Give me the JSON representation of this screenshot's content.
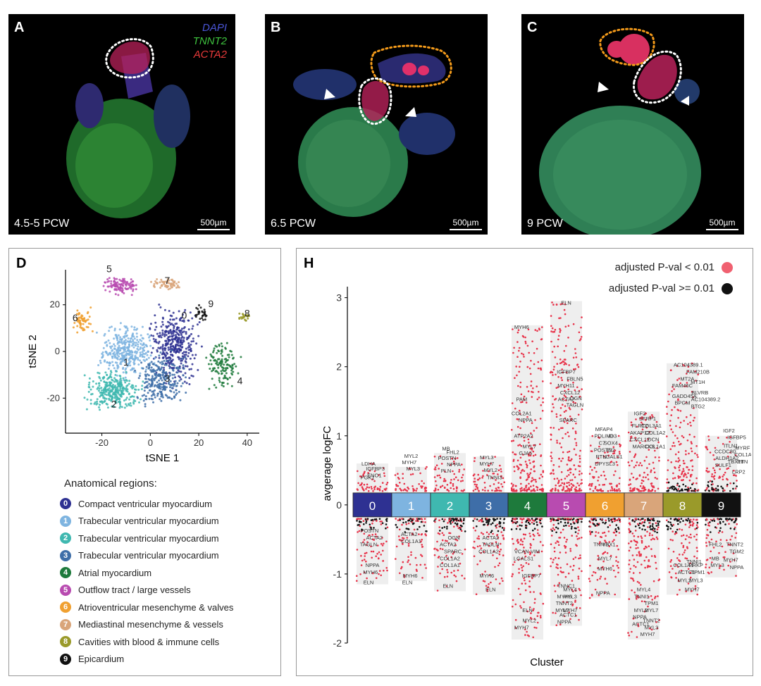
{
  "panel_a": {
    "label": "A",
    "stage": "4.5-5 PCW",
    "scale": "500µm",
    "stains": [
      {
        "name": "DAPI",
        "color": "#4a55d6"
      },
      {
        "name": "TNNT2",
        "color": "#3ec23e"
      },
      {
        "name": "ACTA2",
        "color": "#e83a3a"
      }
    ]
  },
  "panel_b": {
    "label": "B",
    "stage": "6.5 PCW",
    "scale": "500µm"
  },
  "panel_c": {
    "label": "C",
    "stage": "9 PCW",
    "scale": "500µm"
  },
  "panel_d": {
    "label": "D",
    "legend_title": "Anatomical regions:"
  },
  "panel_h": {
    "label": "H",
    "legend_sig": "adjusted P-val < 0.01",
    "legend_nonsig": "adjusted  P-val >= 0.01"
  },
  "regions": [
    {
      "id": "0",
      "name": "Compact ventricular myocardium",
      "color": "#2e3192"
    },
    {
      "id": "1",
      "name": "Trabecular ventricular myocardium",
      "color": "#7eb4e0"
    },
    {
      "id": "2",
      "name": "Trabecular ventricular myocardium",
      "color": "#3fb8b0"
    },
    {
      "id": "3",
      "name": "Trabecular ventricular myocardium",
      "color": "#3e6ea8"
    },
    {
      "id": "4",
      "name": "Atrial myocardium",
      "color": "#1e7a3c"
    },
    {
      "id": "5",
      "name": "Outflow tract / large vessels",
      "color": "#b84bb0"
    },
    {
      "id": "6",
      "name": "Atrioventricular mesenchyme & valves",
      "color": "#f0a030"
    },
    {
      "id": "7",
      "name": "Mediastinal mesenchyme & vessels",
      "color": "#d9a57a"
    },
    {
      "id": "8",
      "name": "Cavities with blood & immune cells",
      "color": "#9a9a2a"
    },
    {
      "id": "9",
      "name": "Epicardium",
      "color": "#111111"
    }
  ],
  "chart_data": [
    {
      "type": "scatter",
      "title": "",
      "xlabel": "tSNE 1",
      "ylabel": "tSNE 2",
      "xlim": [
        -35,
        45
      ],
      "ylim": [
        -35,
        35
      ],
      "xticks": [
        -20,
        0,
        20,
        40
      ],
      "yticks": [
        -20,
        0,
        20
      ],
      "clusters": [
        {
          "id": "0",
          "center": [
            10,
            3
          ],
          "spread": [
            7,
            11
          ],
          "label_pos": [
            14,
            14
          ]
        },
        {
          "id": "1",
          "center": [
            -10,
            0
          ],
          "spread": [
            8,
            8
          ],
          "label_pos": [
            -10,
            -6
          ]
        },
        {
          "id": "2",
          "center": [
            -15,
            -17
          ],
          "spread": [
            8,
            6
          ],
          "label_pos": [
            -15,
            -24
          ]
        },
        {
          "id": "3",
          "center": [
            4,
            -12
          ],
          "spread": [
            7,
            8
          ],
          "label_pos": [
            7,
            -13
          ]
        },
        {
          "id": "4",
          "center": [
            30,
            -6
          ],
          "spread": [
            5,
            7
          ],
          "label_pos": [
            37,
            -14
          ]
        },
        {
          "id": "5",
          "center": [
            -12,
            28
          ],
          "spread": [
            5,
            3
          ],
          "label_pos": [
            -17,
            34
          ]
        },
        {
          "id": "6",
          "center": [
            -28,
            13
          ],
          "spread": [
            3,
            4
          ],
          "label_pos": [
            -31,
            13
          ]
        },
        {
          "id": "7",
          "center": [
            7,
            29
          ],
          "spread": [
            5,
            2
          ],
          "label_pos": [
            7,
            29
          ]
        },
        {
          "id": "8",
          "center": [
            39,
            15
          ],
          "spread": [
            2,
            1.5
          ],
          "label_pos": [
            40,
            15
          ]
        },
        {
          "id": "9",
          "center": [
            21,
            16
          ],
          "spread": [
            2,
            2.5
          ],
          "label_pos": [
            25,
            19
          ]
        }
      ]
    },
    {
      "type": "scatter",
      "title": "",
      "xlabel": "Cluster",
      "ylabel": "avgerage logFC",
      "ylim": [
        -2,
        3.2
      ],
      "yticks": [
        -2,
        -1,
        0,
        1,
        2,
        3
      ],
      "categories": [
        "0",
        "1",
        "2",
        "3",
        "4",
        "5",
        "6",
        "7",
        "8",
        "9"
      ],
      "up_range": [
        0.6,
        0.55,
        0.75,
        0.7,
        2.6,
        2.95,
        1.0,
        1.35,
        2.05,
        1.0
      ],
      "down_range": [
        -1.15,
        -1.1,
        -1.25,
        -1.3,
        -1.95,
        -1.75,
        -1.35,
        -1.95,
        -1.3,
        -1.05
      ],
      "up_labels": [
        [
          {
            "t": "LDHA",
            "x": -0.2,
            "y": 0.57
          },
          {
            "t": "IGFBP3",
            "x": 0.15,
            "y": 0.5
          },
          {
            "t": "PGK1",
            "x": -0.25,
            "y": 0.37
          },
          {
            "t": "ENO1",
            "x": 0.1,
            "y": 0.4
          }
        ],
        [
          {
            "t": "MYL2",
            "x": 0,
            "y": 0.68
          },
          {
            "t": "MYH7",
            "x": -0.1,
            "y": 0.59
          },
          {
            "t": "MYL3",
            "x": 0.1,
            "y": 0.5
          }
        ],
        [
          {
            "t": "MB",
            "x": -0.2,
            "y": 0.79
          },
          {
            "t": "FHL2",
            "x": 0.15,
            "y": 0.74
          },
          {
            "t": "POSTN",
            "x": -0.15,
            "y": 0.65
          },
          {
            "t": "NPPA",
            "x": 0.2,
            "y": 0.56
          },
          {
            "t": "PLN",
            "x": -0.2,
            "y": 0.47
          }
        ],
        [
          {
            "t": "MYL3",
            "x": -0.1,
            "y": 0.66
          },
          {
            "t": "MYH7",
            "x": -0.1,
            "y": 0.57
          },
          {
            "t": "MYL2",
            "x": 0.1,
            "y": 0.48
          },
          {
            "t": "TNNI3",
            "x": 0.3,
            "y": 0.37
          }
        ],
        [
          {
            "t": "MYH6",
            "x": -0.3,
            "y": 2.55
          },
          {
            "t": "PAM",
            "x": -0.3,
            "y": 1.5
          },
          {
            "t": "COL2A1",
            "x": -0.3,
            "y": 1.3
          },
          {
            "t": "NPPA",
            "x": -0.1,
            "y": 1.2
          },
          {
            "t": "ATP2A2",
            "x": -0.2,
            "y": 0.97
          },
          {
            "t": "MYL7",
            "x": 0.1,
            "y": 0.82
          },
          {
            "t": "GJA5",
            "x": -0.1,
            "y": 0.72
          }
        ],
        [
          {
            "t": "ELN",
            "x": 0,
            "y": 2.9
          },
          {
            "t": "IGFBP7",
            "x": 0,
            "y": 1.9
          },
          {
            "t": "FBLN5",
            "x": 0.45,
            "y": 1.8
          },
          {
            "t": "MYH11",
            "x": 0,
            "y": 1.7
          },
          {
            "t": "CXCL12",
            "x": 0.2,
            "y": 1.6
          },
          {
            "t": "ACTA2",
            "x": 0,
            "y": 1.5
          },
          {
            "t": "OGN",
            "x": 0.5,
            "y": 1.52
          },
          {
            "t": "TAGLN",
            "x": 0.45,
            "y": 1.42
          },
          {
            "t": "SPARC",
            "x": 0.1,
            "y": 1.2
          }
        ],
        [
          {
            "t": "MFAP4",
            "x": -0.05,
            "y": 1.07
          },
          {
            "t": "PDLIM3",
            "x": -0.05,
            "y": 0.97
          },
          {
            "t": "ID3",
            "x": 0.4,
            "y": 0.97
          },
          {
            "t": "C7",
            "x": -0.15,
            "y": 0.87
          },
          {
            "t": "SOX4",
            "x": 0.3,
            "y": 0.87
          },
          {
            "t": "POSTN",
            "x": -0.1,
            "y": 0.77
          },
          {
            "t": "ID2",
            "x": 0.3,
            "y": 0.77
          },
          {
            "t": "RTN",
            "x": -0.2,
            "y": 0.67
          },
          {
            "t": "LGALS1",
            "x": 0.4,
            "y": 0.67
          },
          {
            "t": "DPYSL3",
            "x": 0,
            "y": 0.57
          }
        ],
        [
          {
            "t": "IGF2",
            "x": -0.2,
            "y": 1.3
          },
          {
            "t": "SFRP1",
            "x": 0.2,
            "y": 1.22
          },
          {
            "t": "FLRT2",
            "x": -0.2,
            "y": 1.12
          },
          {
            "t": "COL3A1",
            "x": 0.4,
            "y": 1.12
          },
          {
            "t": "AKAP12",
            "x": -0.2,
            "y": 1.02
          },
          {
            "t": "COL1A2",
            "x": 0.6,
            "y": 1.02
          },
          {
            "t": "CXCL12",
            "x": -0.2,
            "y": 0.92
          },
          {
            "t": "DCN",
            "x": 0.5,
            "y": 0.92
          },
          {
            "t": "MARCKS",
            "x": 0,
            "y": 0.82
          },
          {
            "t": "COL1A1",
            "x": 0.6,
            "y": 0.82
          }
        ],
        [
          {
            "t": "AC104389.1",
            "x": 0.3,
            "y": 2.0
          },
          {
            "t": "FAM210B",
            "x": 0.8,
            "y": 1.9
          },
          {
            "t": "MT2A",
            "x": 0.25,
            "y": 1.8
          },
          {
            "t": "MT1H",
            "x": 0.8,
            "y": 1.75
          },
          {
            "t": "FAM46C",
            "x": 0,
            "y": 1.7
          },
          {
            "t": "BLVRB",
            "x": 0.9,
            "y": 1.6
          },
          {
            "t": "GADD45A",
            "x": 0.1,
            "y": 1.55
          },
          {
            "t": "AC104389.2",
            "x": 1.2,
            "y": 1.5
          },
          {
            "t": "BPGM",
            "x": 0,
            "y": 1.45
          },
          {
            "t": "BTG2",
            "x": 0.8,
            "y": 1.4
          }
        ],
        [
          {
            "t": "IGF2",
            "x": 0.4,
            "y": 1.05
          },
          {
            "t": "IGFBP5",
            "x": 0.8,
            "y": 0.95
          },
          {
            "t": "ITLN1",
            "x": 0.5,
            "y": 0.83
          },
          {
            "t": "MYRF",
            "x": 1.1,
            "y": 0.8
          },
          {
            "t": "CCDC80",
            "x": 0.2,
            "y": 0.75
          },
          {
            "t": "COL1A1",
            "x": 1.2,
            "y": 0.7
          },
          {
            "t": "ALDH1A2",
            "x": 0.3,
            "y": 0.65
          },
          {
            "t": "TBX18",
            "x": 0.75,
            "y": 0.6
          },
          {
            "t": "PTN",
            "x": 1.1,
            "y": 0.6
          },
          {
            "t": "SULF1",
            "x": 0.1,
            "y": 0.55
          },
          {
            "t": "LRP2",
            "x": 0.9,
            "y": 0.45
          }
        ]
      ],
      "down_labels": [
        [
          {
            "t": "POSTN",
            "x": -0.15,
            "y": -0.4
          },
          {
            "t": "ACTA2",
            "x": 0.1,
            "y": -0.5
          },
          {
            "t": "TAGLN",
            "x": -0.2,
            "y": -0.6
          },
          {
            "t": "NPPA",
            "x": 0,
            "y": -0.9
          },
          {
            "t": "MYH6",
            "x": -0.1,
            "y": -1.0
          },
          {
            "t": "ELN",
            "x": -0.2,
            "y": -1.15
          }
        ],
        [
          {
            "t": "ACTA2",
            "x": -0.1,
            "y": -0.45
          },
          {
            "t": "COL1A1",
            "x": 0,
            "y": -0.55
          },
          {
            "t": "MYH6",
            "x": -0.05,
            "y": -1.05
          },
          {
            "t": "ELN",
            "x": -0.2,
            "y": -1.15
          }
        ],
        [
          {
            "t": "OGN",
            "x": 0.2,
            "y": -0.5
          },
          {
            "t": "ACTA2",
            "x": -0.1,
            "y": -0.6
          },
          {
            "t": "SPARC",
            "x": 0.15,
            "y": -0.7
          },
          {
            "t": "COL1A2",
            "x": 0,
            "y": -0.8
          },
          {
            "t": "COL1A1",
            "x": 0,
            "y": -0.9
          },
          {
            "t": "ELN",
            "x": -0.1,
            "y": -1.2
          }
        ],
        [
          {
            "t": "ACTA2",
            "x": 0.1,
            "y": -0.5
          },
          {
            "t": "TAGLN",
            "x": 0.1,
            "y": -0.6
          },
          {
            "t": "COL1A2",
            "x": 0,
            "y": -0.7
          },
          {
            "t": "MYH6",
            "x": -0.1,
            "y": -1.05
          },
          {
            "t": "ELN",
            "x": 0.1,
            "y": -1.25
          }
        ],
        [
          {
            "t": "VCAN",
            "x": -0.3,
            "y": -0.7
          },
          {
            "t": "VIM",
            "x": 0.4,
            "y": -0.7
          },
          {
            "t": "LGALS1",
            "x": -0.2,
            "y": -0.8
          },
          {
            "t": "IGFBP7",
            "x": 0.2,
            "y": -1.05
          },
          {
            "t": "ELN",
            "x": 0,
            "y": -1.55
          },
          {
            "t": "MYL2",
            "x": 0.1,
            "y": -1.7
          },
          {
            "t": "MYH7",
            "x": -0.3,
            "y": -1.8
          }
        ],
        [
          {
            "t": "TNNC1",
            "x": 0,
            "y": -1.2
          },
          {
            "t": "MYL4",
            "x": 0.2,
            "y": -1.25
          },
          {
            "t": "MYH6",
            "x": -0.1,
            "y": -1.35
          },
          {
            "t": "MYL3",
            "x": 0.2,
            "y": -1.35
          },
          {
            "t": "TNNT2",
            "x": -0.1,
            "y": -1.45
          },
          {
            "t": "MYL7",
            "x": -0.2,
            "y": -1.55
          },
          {
            "t": "MYH7",
            "x": 0.2,
            "y": -1.55
          },
          {
            "t": "ACTC1",
            "x": 0.1,
            "y": -1.62
          },
          {
            "t": "NPPA",
            "x": -0.1,
            "y": -1.72
          }
        ],
        [
          {
            "t": "TNNI3",
            "x": -0.2,
            "y": -0.6
          },
          {
            "t": "YBX1",
            "x": 0.2,
            "y": -0.6
          },
          {
            "t": "MYL7",
            "x": 0,
            "y": -0.8
          },
          {
            "t": "MYH6",
            "x": 0,
            "y": -0.95
          },
          {
            "t": "NPPA",
            "x": -0.1,
            "y": -1.3
          }
        ],
        [
          {
            "t": "MYL4",
            "x": 0,
            "y": -1.25
          },
          {
            "t": "TNNI1",
            "x": -0.1,
            "y": -1.35
          },
          {
            "t": "TPM1",
            "x": 0.4,
            "y": -1.45
          },
          {
            "t": "MYL2",
            "x": -0.15,
            "y": -1.55
          },
          {
            "t": "MYL7",
            "x": 0.4,
            "y": -1.55
          },
          {
            "t": "NPPA",
            "x": -0.2,
            "y": -1.65
          },
          {
            "t": "TNNT2",
            "x": 0.4,
            "y": -1.7
          },
          {
            "t": "ACTC1",
            "x": -0.15,
            "y": -1.75
          },
          {
            "t": "MYL3",
            "x": 0.4,
            "y": -1.8
          },
          {
            "t": "MYH7",
            "x": 0.2,
            "y": -1.9
          }
        ],
        [
          {
            "t": "TNNI1",
            "x": 0.6,
            "y": -0.85
          },
          {
            "t": "COL1A1",
            "x": 0.05,
            "y": -0.9
          },
          {
            "t": "PRKP",
            "x": 0.7,
            "y": -0.9
          },
          {
            "t": "ACTC1",
            "x": 0.2,
            "y": -1.0
          },
          {
            "t": "TPM1",
            "x": 0.8,
            "y": -1.0
          },
          {
            "t": "MYL2",
            "x": 0.1,
            "y": -1.12
          },
          {
            "t": "MYL3",
            "x": 0.7,
            "y": -1.12
          },
          {
            "t": "MYH7",
            "x": 0.5,
            "y": -1.25
          }
        ],
        [
          {
            "t": "FHL2",
            "x": -0.3,
            "y": -0.6
          },
          {
            "t": "TNNT2",
            "x": 0.7,
            "y": -0.6
          },
          {
            "t": "TGM2",
            "x": 0.8,
            "y": -0.7
          },
          {
            "t": "MB",
            "x": -0.3,
            "y": -0.8
          },
          {
            "t": "MYH7",
            "x": 0.5,
            "y": -0.82
          },
          {
            "t": "MYL3",
            "x": -0.2,
            "y": -0.9
          },
          {
            "t": "NPPA",
            "x": 0.8,
            "y": -0.93
          }
        ]
      ]
    }
  ]
}
